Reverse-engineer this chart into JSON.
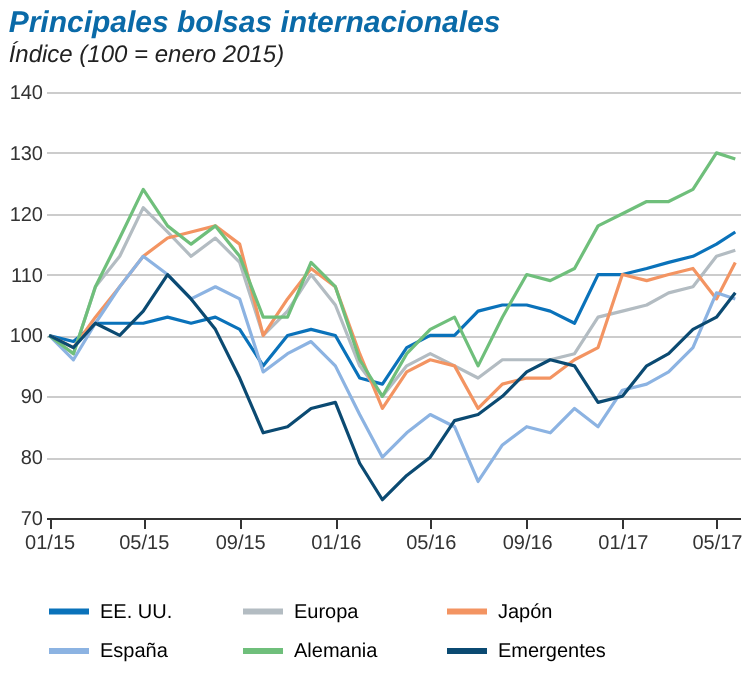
{
  "chart_data": {
    "type": "line",
    "title": "Principales bolsas internacionales",
    "subtitle": "Índice (100 = enero 2015)",
    "x": [
      "2015-01-01",
      "2015-02-01",
      "2015-03-01",
      "2015-04-01",
      "2015-05-01",
      "2015-06-01",
      "2015-07-01",
      "2015-08-01",
      "2015-09-01",
      "2015-10-01",
      "2015-11-01",
      "2015-12-01",
      "2016-01-01",
      "2016-02-01",
      "2016-03-01",
      "2016-04-01",
      "2016-05-01",
      "2016-06-01",
      "2016-07-01",
      "2016-08-01",
      "2016-09-01",
      "2016-10-01",
      "2016-11-01",
      "2016-12-01",
      "2017-01-01",
      "2017-02-01",
      "2017-03-01",
      "2017-04-01",
      "2017-05-01",
      "2017-05-25"
    ],
    "series": [
      {
        "name": "EE. UU.",
        "color": "#0a72ba",
        "values": [
          100,
          99,
          102,
          102,
          102,
          103,
          102,
          103,
          101,
          95,
          100,
          101,
          100,
          93,
          92,
          98,
          100,
          100,
          104,
          105,
          105,
          104,
          102,
          110,
          110,
          111,
          112,
          113,
          115,
          117
        ]
      },
      {
        "name": "Europa",
        "color": "#b3bcc2",
        "values": [
          100,
          97,
          108,
          113,
          121,
          117,
          113,
          116,
          112,
          100,
          104,
          110,
          105,
          95,
          90,
          95,
          97,
          95,
          93,
          96,
          96,
          96,
          97,
          103,
          104,
          105,
          107,
          108,
          113,
          114
        ]
      },
      {
        "name": "Japón",
        "color": "#f39462",
        "values": [
          100,
          98,
          103,
          108,
          113,
          116,
          117,
          118,
          115,
          100,
          106,
          111,
          108,
          97,
          88,
          94,
          96,
          95,
          88,
          92,
          93,
          93,
          96,
          98,
          110,
          109,
          110,
          111,
          106,
          112
        ]
      },
      {
        "name": "España",
        "color": "#8cb3e2",
        "values": [
          100,
          96,
          102,
          108,
          113,
          110,
          106,
          108,
          106,
          94,
          97,
          99,
          95,
          87,
          80,
          84,
          87,
          85,
          76,
          82,
          85,
          84,
          88,
          85,
          91,
          92,
          94,
          98,
          107,
          106
        ]
      },
      {
        "name": "Alemania",
        "color": "#6fbf7b",
        "values": [
          100,
          97,
          108,
          116,
          124,
          118,
          115,
          118,
          113,
          103,
          103,
          112,
          108,
          96,
          90,
          97,
          101,
          103,
          95,
          103,
          110,
          109,
          111,
          118,
          120,
          122,
          122,
          124,
          130,
          129
        ]
      },
      {
        "name": "Emergentes",
        "color": "#0b4a72",
        "values": [
          100,
          98,
          102,
          100,
          104,
          110,
          106,
          101,
          93,
          84,
          85,
          88,
          89,
          79,
          73,
          77,
          80,
          86,
          87,
          90,
          94,
          96,
          95,
          89,
          90,
          95,
          97,
          101,
          103,
          107
        ]
      }
    ],
    "xlim": [
      "2014-12-28",
      "2017-05-31"
    ],
    "xticks": [
      {
        "value": "2015-01-01",
        "label": "01/15"
      },
      {
        "value": "2015-05-01",
        "label": "05/15"
      },
      {
        "value": "2015-09-01",
        "label": "09/15"
      },
      {
        "value": "2016-01-01",
        "label": "01/16"
      },
      {
        "value": "2016-05-01",
        "label": "05/16"
      },
      {
        "value": "2016-09-01",
        "label": "09/16"
      },
      {
        "value": "2017-01-01",
        "label": "01/17"
      },
      {
        "value": "2017-05-01",
        "label": "05/17"
      }
    ],
    "ylim": [
      70,
      140
    ],
    "yticks": [
      70,
      80,
      90,
      100,
      110,
      120,
      130,
      140
    ],
    "grid": "y",
    "legend": "bottom",
    "line_style": "solid",
    "marker": "none"
  }
}
